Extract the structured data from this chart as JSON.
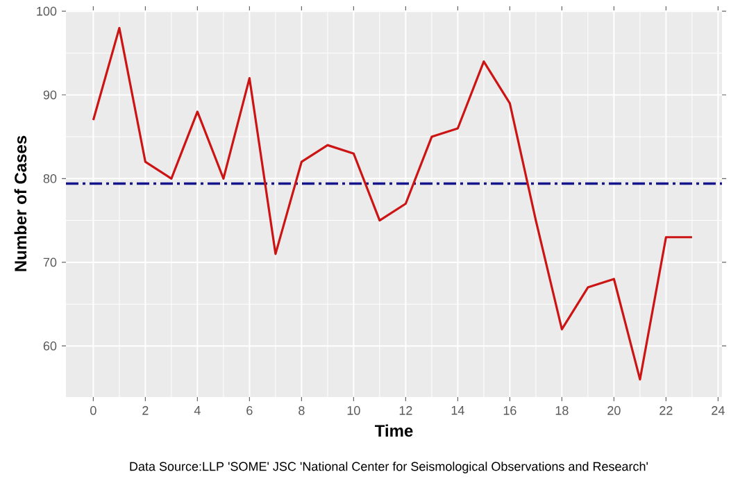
{
  "chart_data": {
    "type": "line",
    "xlabel": "Time",
    "ylabel": "Number of Cases",
    "x": [
      0,
      1,
      2,
      3,
      4,
      5,
      6,
      7,
      8,
      9,
      10,
      11,
      12,
      13,
      14,
      15,
      16,
      17,
      18,
      19,
      20,
      21,
      22,
      23
    ],
    "series": [
      {
        "color": "#cc1414",
        "values": [
          87,
          98,
          82,
          80,
          88,
          80,
          92,
          71,
          82,
          84,
          83,
          75,
          77,
          85,
          86,
          94,
          89,
          75,
          62,
          67,
          68,
          56,
          73,
          73
        ]
      }
    ],
    "xlim": [
      -1.05,
      24.15
    ],
    "ylim": [
      53.9,
      100.1
    ],
    "xticks": [
      0,
      2,
      4,
      6,
      8,
      10,
      12,
      14,
      16,
      18,
      20,
      22,
      24
    ],
    "yticks": [
      60,
      70,
      80,
      90,
      100
    ],
    "ref_lines": [
      {
        "axis": "y",
        "value": 79.4,
        "color": "#14148c",
        "line_style": "dashdot"
      }
    ],
    "grid": true,
    "marker": "none",
    "annotations": [
      "Data Source:LLP 'SOME' JSC 'National Center for Seismological Observations and Research'"
    ]
  }
}
